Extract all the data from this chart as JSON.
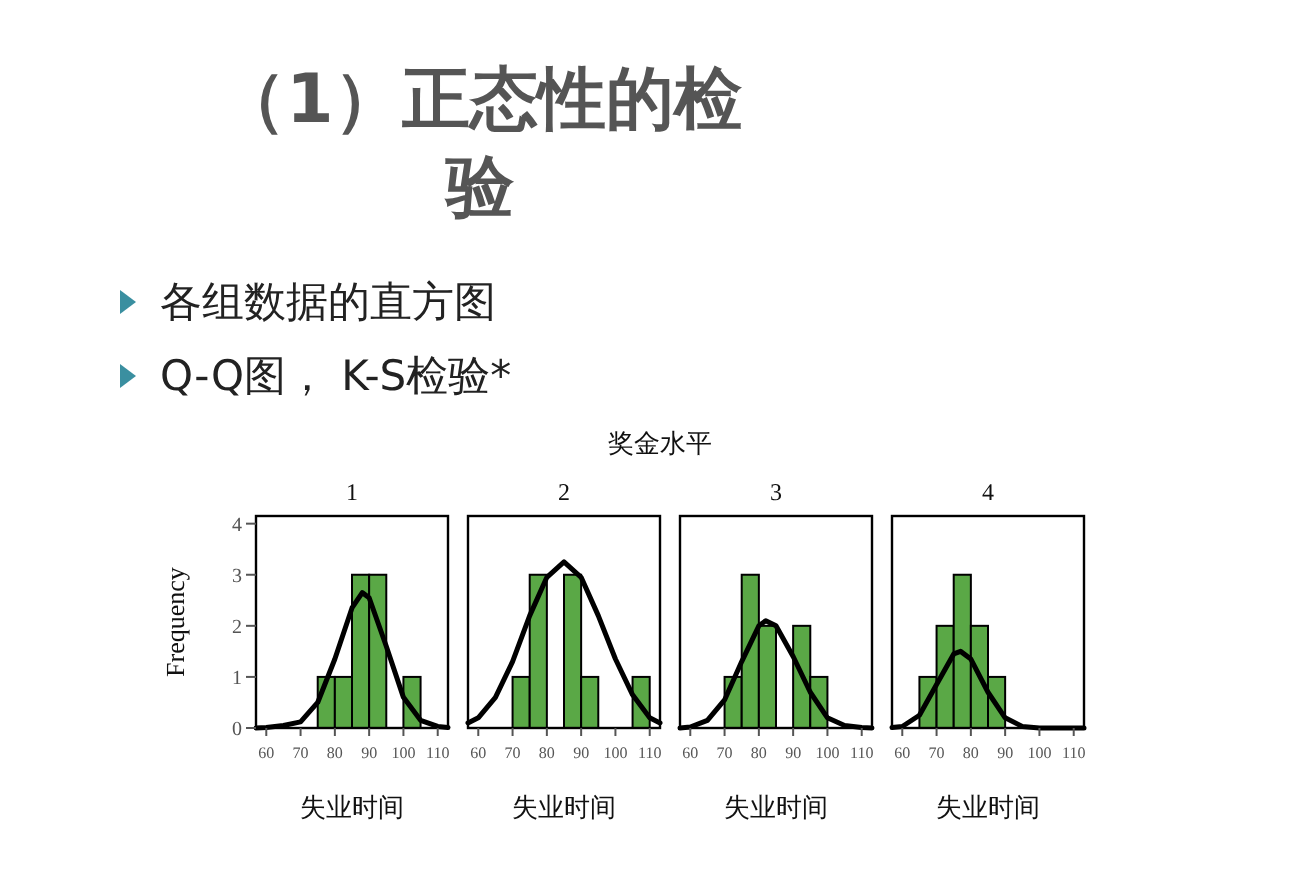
{
  "chart_data": [
    {
      "type": "other",
      "title": "（1）正态性的检验",
      "annotations": [
        "各组数据的直方图",
        "Q-Q图， K-S检验*",
        "奖金水平"
      ]
    },
    {
      "type": "histogram",
      "title": "1",
      "xlabel": "失业时间",
      "ylabel": "Frequency",
      "bins": [
        75,
        80,
        85,
        90,
        95,
        100,
        105
      ],
      "values": [
        1,
        1,
        3,
        3,
        0,
        1
      ],
      "color": "#5aa846",
      "xlim": [
        57,
        113
      ],
      "xticks": [
        60,
        70,
        80,
        90,
        100,
        110
      ],
      "ylim": [
        0,
        4.15
      ],
      "yticks": [
        0,
        1,
        2,
        3,
        4
      ],
      "series": [
        {
          "type": "line",
          "color": "#000000",
          "x": [
            57,
            60,
            65,
            70,
            75,
            80,
            85,
            88,
            90,
            95,
            100,
            105,
            110,
            113
          ],
          "values": [
            0,
            0.01,
            0.05,
            0.12,
            0.5,
            1.35,
            2.35,
            2.65,
            2.55,
            1.6,
            0.6,
            0.15,
            0.03,
            0.01
          ]
        }
      ]
    },
    {
      "type": "histogram",
      "title": "2",
      "xlabel": "失业时间",
      "bins": [
        70,
        75,
        80,
        85,
        90,
        95,
        100,
        105,
        110
      ],
      "values": [
        1,
        3,
        0,
        3,
        1,
        0,
        0,
        1
      ],
      "color": "#5aa846",
      "xlim": [
        57,
        113
      ],
      "xticks": [
        60,
        70,
        80,
        90,
        100,
        110
      ],
      "ylim": [
        0,
        4.15
      ],
      "tick_labels": "x",
      "series": [
        {
          "type": "line",
          "color": "#000000",
          "x": [
            57,
            60,
            65,
            70,
            75,
            80,
            85,
            90,
            95,
            100,
            105,
            110,
            113
          ],
          "values": [
            0.1,
            0.2,
            0.6,
            1.3,
            2.2,
            2.95,
            3.25,
            2.95,
            2.2,
            1.35,
            0.65,
            0.2,
            0.1
          ]
        }
      ]
    },
    {
      "type": "histogram",
      "title": "3",
      "xlabel": "失业时间",
      "bins": [
        70,
        75,
        80,
        85,
        90,
        95,
        100
      ],
      "values": [
        1,
        3,
        2,
        0,
        2,
        1
      ],
      "color": "#5aa846",
      "xlim": [
        57,
        113
      ],
      "xticks": [
        60,
        70,
        80,
        90,
        100,
        110
      ],
      "ylim": [
        0,
        4.15
      ],
      "tick_labels": "x",
      "series": [
        {
          "type": "line",
          "color": "#000000",
          "x": [
            57,
            60,
            65,
            70,
            75,
            80,
            82,
            85,
            90,
            95,
            100,
            105,
            110,
            113
          ],
          "values": [
            0,
            0.02,
            0.15,
            0.55,
            1.3,
            2.0,
            2.1,
            2.0,
            1.4,
            0.7,
            0.2,
            0.05,
            0.01,
            0
          ]
        }
      ]
    },
    {
      "type": "histogram",
      "title": "4",
      "xlabel": "失业时间",
      "bins": [
        65,
        70,
        75,
        80,
        85,
        90
      ],
      "values": [
        1,
        2,
        3,
        2,
        1
      ],
      "color": "#5aa846",
      "xlim": [
        57,
        113
      ],
      "xticks": [
        60,
        70,
        80,
        90,
        100,
        110
      ],
      "ylim": [
        0,
        4.15
      ],
      "tick_labels": "x",
      "series": [
        {
          "type": "line",
          "color": "#000000",
          "x": [
            57,
            60,
            65,
            70,
            75,
            77,
            80,
            85,
            90,
            95,
            100,
            105,
            110,
            113
          ],
          "values": [
            0.01,
            0.03,
            0.25,
            0.85,
            1.45,
            1.5,
            1.35,
            0.7,
            0.2,
            0.03,
            0,
            0,
            0,
            0
          ]
        }
      ]
    }
  ]
}
